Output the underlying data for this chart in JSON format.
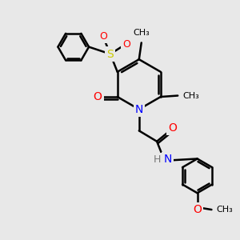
{
  "background_color": "#e8e8e8",
  "bond_color": "#000000",
  "bond_width": 1.8,
  "atom_colors": {
    "N": "#0000ff",
    "O": "#ff0000",
    "S": "#cccc00",
    "H": "#777777",
    "C": "#000000"
  },
  "font_size": 9,
  "figsize": [
    3.0,
    3.0
  ],
  "dpi": 100,
  "xlim": [
    0,
    10
  ],
  "ylim": [
    0,
    10
  ]
}
